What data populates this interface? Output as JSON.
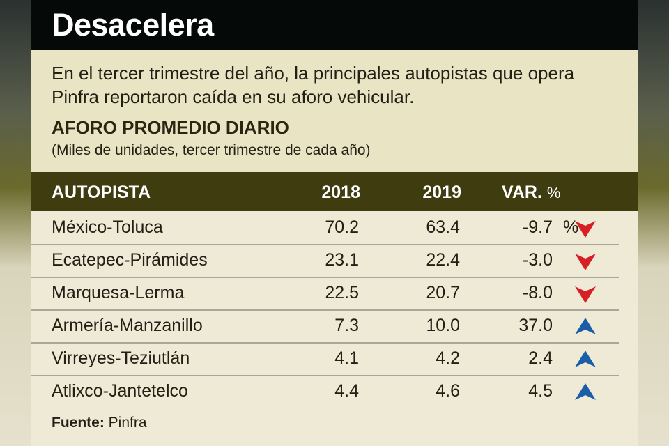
{
  "title": "Desacelera",
  "intro": "En el tercer trimestre del año, la principales autopistas que opera Pinfra reportaron caída en su aforo vehicular.",
  "headline": "AFORO PROMEDIO DIARIO",
  "subtitle": "(Miles de unidades, tercer trimestre de cada año)",
  "table": {
    "headers": [
      "AUTOPISTA",
      "2018",
      "2019",
      "VAR.",
      "%"
    ],
    "rows": [
      {
        "name": "México-Toluca",
        "y2018": "70.2",
        "y2019": "63.4",
        "var": "-9.7",
        "pct": "%",
        "trend": "down"
      },
      {
        "name": "Ecatepec-Pirámides",
        "y2018": "23.1",
        "y2019": "22.4",
        "var": "-3.0",
        "pct": "",
        "trend": "down"
      },
      {
        "name": "Marquesa-Lerma",
        "y2018": "22.5",
        "y2019": "20.7",
        "var": "-8.0",
        "pct": "",
        "trend": "down"
      },
      {
        "name": "Armería-Manzanillo",
        "y2018": "7.3",
        "y2019": "10.0",
        "var": "37.0",
        "pct": "",
        "trend": "up"
      },
      {
        "name": "Virreyes-Teziutlán",
        "y2018": "4.1",
        "y2019": "4.2",
        "var": "2.4",
        "pct": "",
        "trend": "up"
      },
      {
        "name": "Atlixco-Jantetelco",
        "y2018": "4.4",
        "y2019": "4.6",
        "var": "4.5",
        "pct": "",
        "trend": "up"
      }
    ]
  },
  "source": {
    "label": "Fuente:",
    "value": "Pinfra"
  },
  "colors": {
    "down": "#d71f26",
    "up": "#1a5ea8",
    "header": "#3f3c10"
  }
}
